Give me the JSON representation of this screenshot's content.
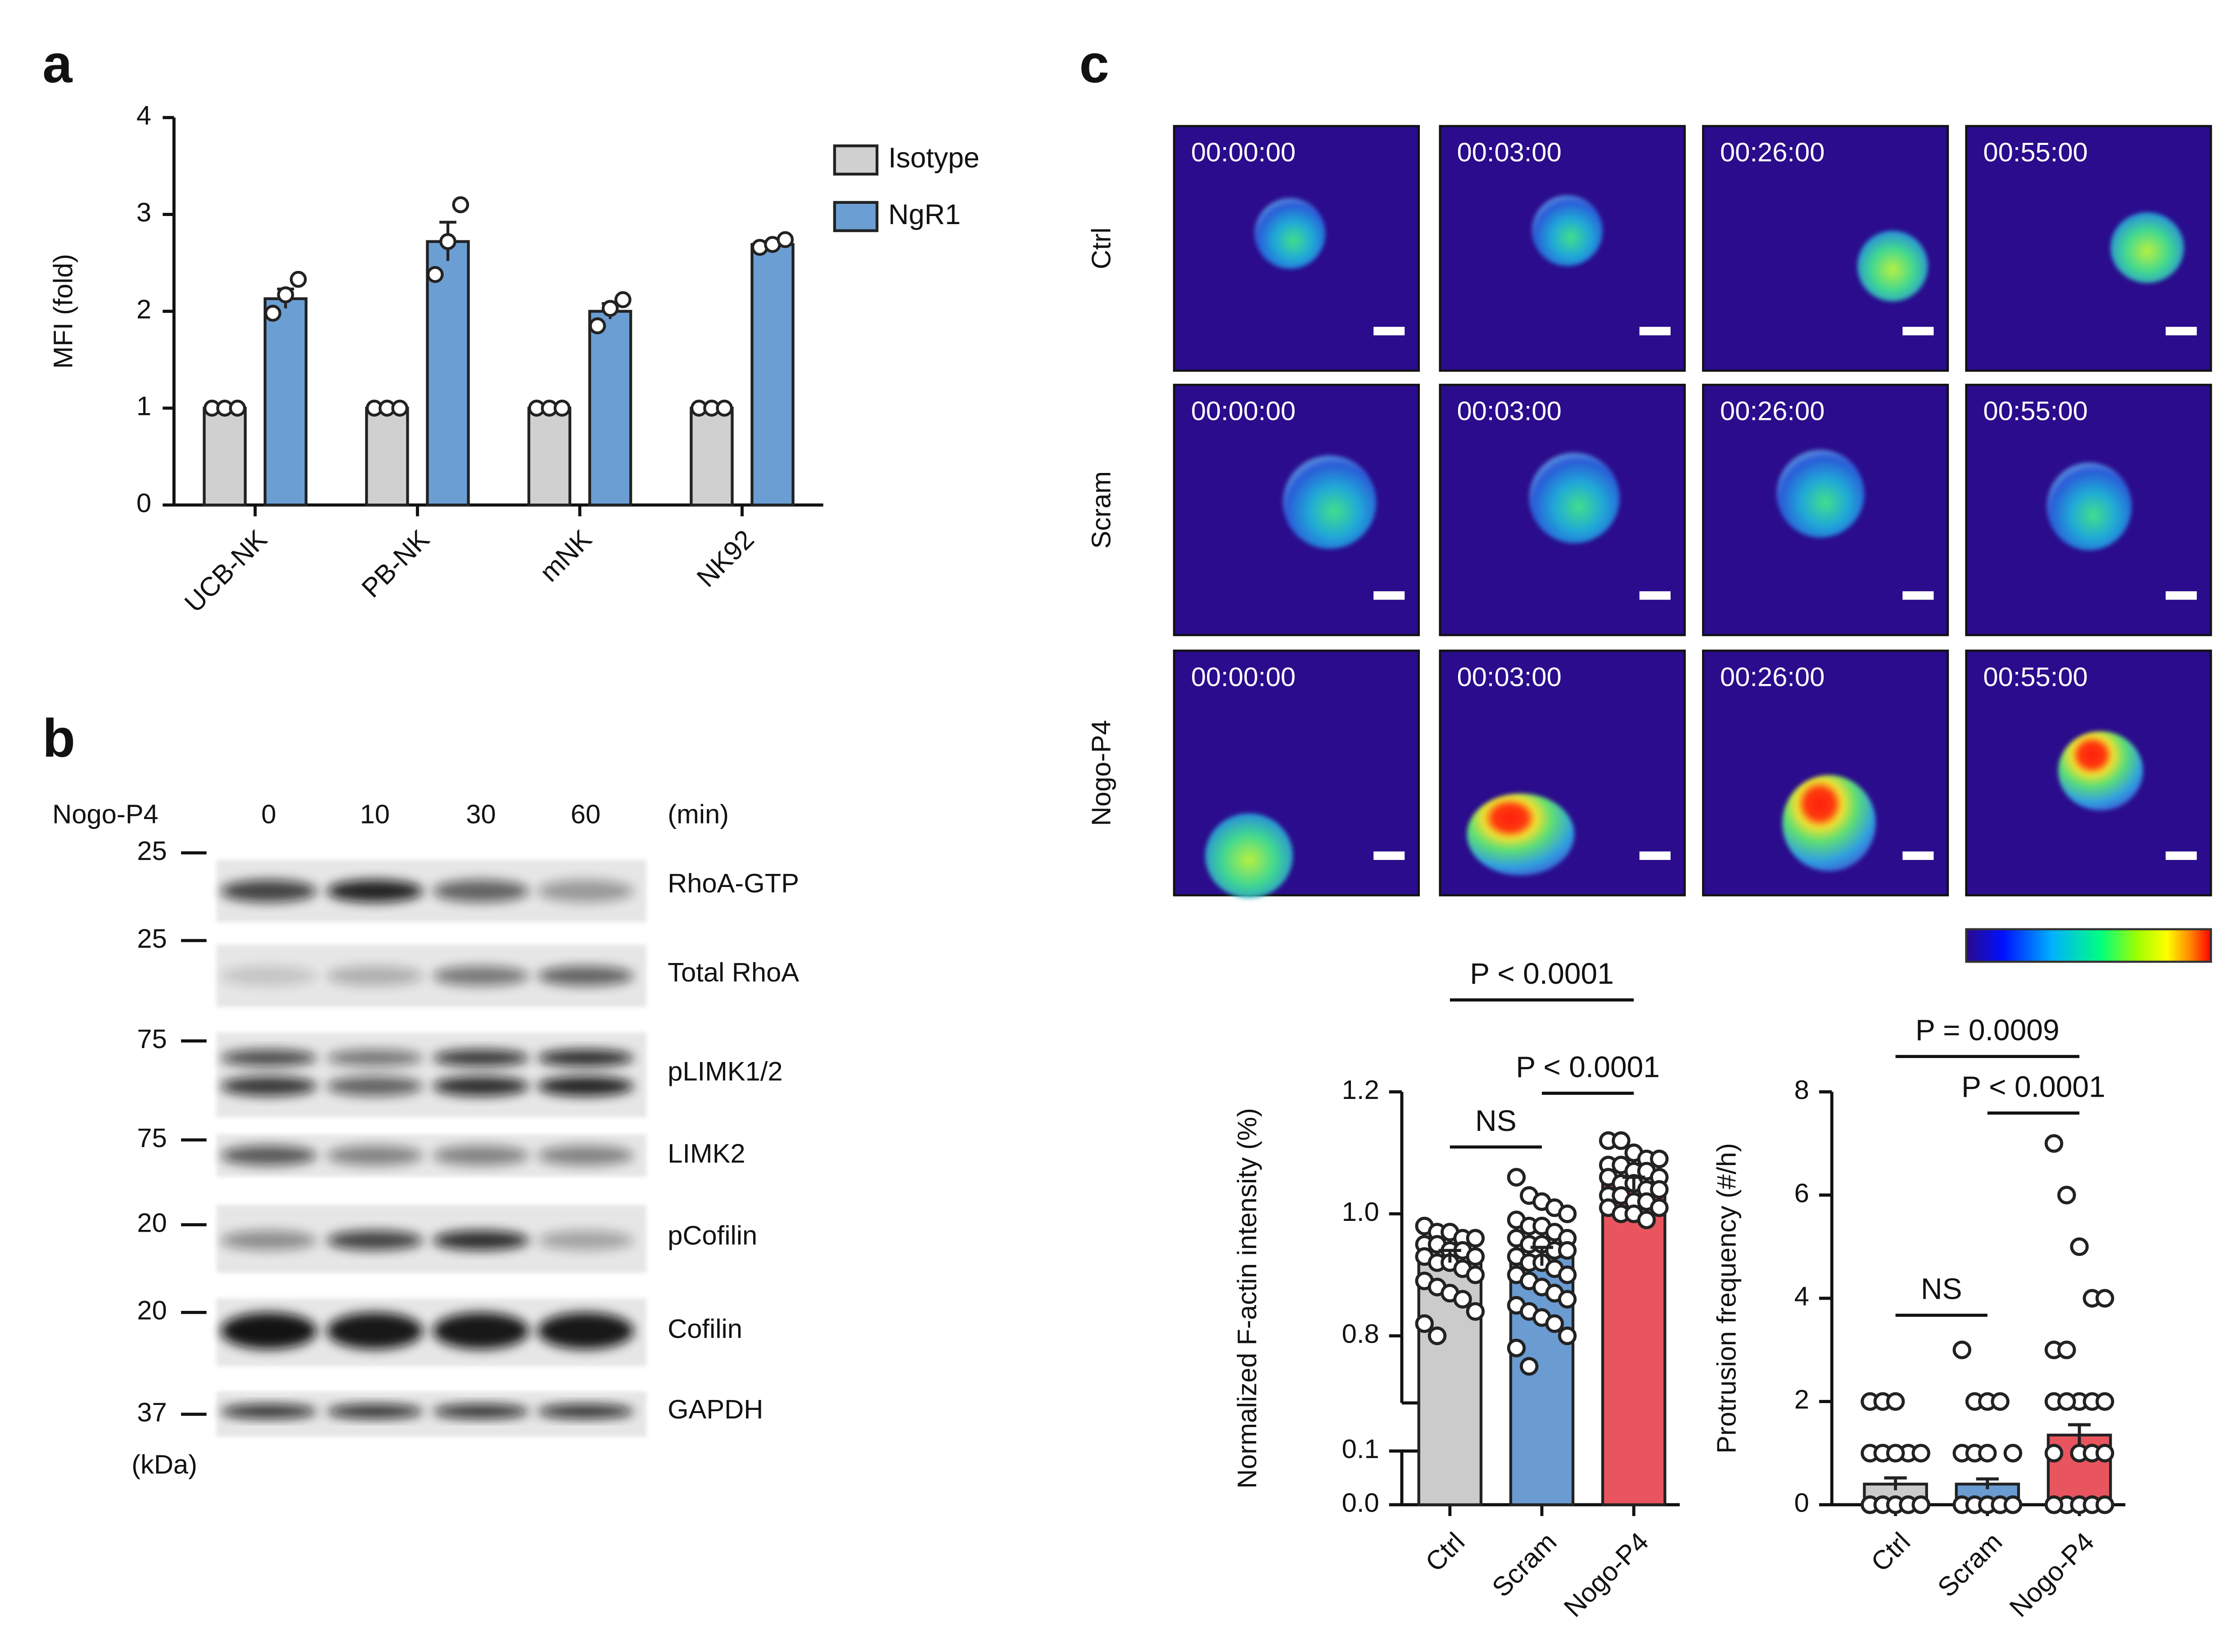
{
  "panels": [
    "a",
    "b",
    "c"
  ],
  "chart_data": [
    {
      "type": "bar",
      "ylabel": "MFI (fold)",
      "categories": [
        "UCB-NK",
        "PB-NK",
        "mNK",
        "NK92"
      ],
      "series": [
        {
          "name": "Isotype",
          "color": "#d0d0d0",
          "values": [
            1,
            1,
            1,
            1
          ],
          "errors": [
            0,
            0,
            0,
            0
          ],
          "points": [
            [
              1,
              1,
              1
            ],
            [
              1,
              1,
              1
            ],
            [
              1,
              1,
              1
            ],
            [
              1,
              1,
              1
            ]
          ]
        },
        {
          "name": "NgR1",
          "color": "#6b9fd4",
          "values": [
            2.13,
            2.72,
            2.0,
            2.69
          ],
          "errors": [
            0.1,
            0.2,
            0.08,
            0.03
          ],
          "points": [
            [
              1.98,
              2.17,
              2.33
            ],
            [
              2.38,
              2.72,
              3.1
            ],
            [
              1.85,
              2.03,
              2.12
            ],
            [
              2.66,
              2.69,
              2.74
            ]
          ]
        }
      ],
      "ylim": [
        0,
        4
      ],
      "yticks": [
        0,
        1,
        2,
        3,
        4
      ],
      "legend": "top-right"
    },
    {
      "type": "bar",
      "ylabel": "Normalized F-actin intensity (%)",
      "categories": [
        "Ctrl",
        "Scram",
        "Nogo-P4"
      ],
      "colors": [
        "#cbcbcb",
        "#6a9bd1",
        "#e8555f"
      ],
      "values": [
        0.93,
        0.93,
        1.05
      ],
      "errors": [
        0.01,
        0.015,
        0.01
      ],
      "points": [
        [
          0.98,
          0.97,
          0.97,
          0.96,
          0.96,
          0.95,
          0.95,
          0.94,
          0.94,
          0.93,
          0.93,
          0.92,
          0.92,
          0.91,
          0.9,
          0.89,
          0.88,
          0.87,
          0.86,
          0.84,
          0.82,
          0.8
        ],
        [
          1.06,
          1.03,
          1.02,
          1.01,
          1.0,
          0.99,
          0.98,
          0.98,
          0.97,
          0.96,
          0.96,
          0.95,
          0.95,
          0.94,
          0.94,
          0.93,
          0.92,
          0.92,
          0.91,
          0.9,
          0.9,
          0.89,
          0.88,
          0.87,
          0.86,
          0.85,
          0.84,
          0.83,
          0.82,
          0.8,
          0.78,
          0.75
        ],
        [
          1.12,
          1.12,
          1.1,
          1.09,
          1.09,
          1.08,
          1.08,
          1.07,
          1.07,
          1.06,
          1.06,
          1.05,
          1.05,
          1.04,
          1.04,
          1.03,
          1.03,
          1.02,
          1.02,
          1.01,
          1.01,
          1.0,
          1.0,
          0.99
        ]
      ],
      "ylim": [
        0,
        1.2
      ],
      "axis_break": [
        0.1,
        0.69
      ],
      "yticks": [
        {
          "value": 0,
          "label": "0.0"
        },
        0.1,
        0.8,
        {
          "value": 1,
          "label": "1.0"
        },
        1.2
      ],
      "annotations": [
        "P < 0.0001",
        "P < 0.0001",
        "NS"
      ]
    },
    {
      "type": "bar",
      "ylabel": "Protrusion frequency (#/h)",
      "categories": [
        "Ctrl",
        "Scram",
        "Nogo-P4"
      ],
      "colors": [
        "#cbcbcb",
        "#6a9bd1",
        "#e8555f"
      ],
      "values": [
        0.4,
        0.4,
        1.35
      ],
      "errors": [
        0.12,
        0.1,
        0.2
      ],
      "points": [
        [
          2,
          2,
          2,
          1,
          1,
          1,
          1,
          1,
          0,
          0,
          0,
          0,
          0,
          0,
          0,
          0,
          0,
          0,
          0,
          0
        ],
        [
          3,
          2,
          2,
          2,
          1,
          1,
          1,
          1,
          0,
          0,
          0,
          0,
          0,
          0,
          0,
          0,
          0,
          0,
          0,
          0
        ],
        [
          7,
          6,
          5,
          4,
          4,
          3,
          3,
          2,
          2,
          2,
          2,
          2,
          1,
          1,
          1,
          1,
          0,
          0,
          0,
          0,
          0,
          0,
          0,
          0,
          0,
          0
        ]
      ],
      "ylim": [
        0,
        8
      ],
      "yticks": [
        0,
        2,
        4,
        6,
        8
      ],
      "annotations": [
        "P = 0.0009",
        "P < 0.0001",
        "NS"
      ]
    }
  ],
  "blot": {
    "treatment": "Nogo-P4",
    "timepoints": [
      0,
      10,
      30,
      60
    ],
    "time_unit": "(min)",
    "size_unit": "(kDa)",
    "rows": [
      {
        "marker": 25,
        "name": "RhoA-GTP"
      },
      {
        "marker": 25,
        "name": "Total RhoA"
      },
      {
        "marker": 75,
        "name": "pLIMK1/2"
      },
      {
        "marker": 75,
        "name": "LIMK2"
      },
      {
        "marker": 20,
        "name": "pCofilin"
      },
      {
        "marker": 20,
        "name": "Cofilin"
      },
      {
        "marker": 37,
        "name": "GAPDH"
      }
    ]
  },
  "microscopy": {
    "rows": [
      "Ctrl",
      "Scram",
      "Nogo-P4"
    ],
    "timestamps": [
      "00:00:00",
      "00:03:00",
      "00:26:00",
      "00:55:00"
    ]
  }
}
